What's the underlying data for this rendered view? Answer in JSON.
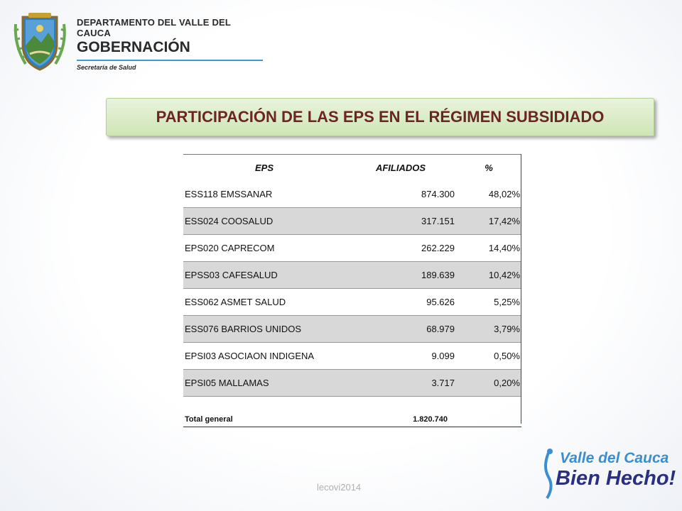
{
  "header": {
    "department": "DEPARTAMENTO DEL VALLE DEL CAUCA",
    "government": "GOBERNACIÓN",
    "secretariat": "Secretaría de Salud"
  },
  "title": "PARTICIPACIÓN DE LAS EPS EN EL RÉGIMEN SUBSIDIADO",
  "table": {
    "columns": [
      "EPS",
      "AFILIADOS",
      "%"
    ],
    "rows": [
      {
        "eps": "ESS118 EMSSANAR",
        "afiliados": "874.300",
        "pct": "48,02%"
      },
      {
        "eps": "ESS024 COOSALUD",
        "afiliados": "317.151",
        "pct": "17,42%"
      },
      {
        "eps": "EPS020 CAPRECOM",
        "afiliados": "262.229",
        "pct": "14,40%"
      },
      {
        "eps": "EPSS03 CAFESALUD",
        "afiliados": "189.639",
        "pct": "10,42%"
      },
      {
        "eps": "ESS062 ASMET SALUD",
        "afiliados": "95.626",
        "pct": "5,25%"
      },
      {
        "eps": "ESS076 BARRIOS UNIDOS",
        "afiliados": "68.979",
        "pct": "3,79%"
      },
      {
        "eps": "EPSI03 ASOCIAON INDIGENA",
        "afiliados": "9.099",
        "pct": "0,50%"
      },
      {
        "eps": "EPSI05 MALLAMAS",
        "afiliados": "3.717",
        "pct": "0,20%"
      }
    ],
    "total_label": "Total general",
    "total_value": "1.820.740"
  },
  "footer": "lecovi2014",
  "brand": {
    "line1": "Valle del Cauca",
    "line2": "Bien Hecho!"
  },
  "colors": {
    "title_text": "#6b2525",
    "title_box": "#cfe5b5",
    "rule": "#3a9bd8",
    "row_shade": "#d8d8d8",
    "brand_light": "#3a8fd0",
    "brand_dark": "#2a2f80"
  }
}
